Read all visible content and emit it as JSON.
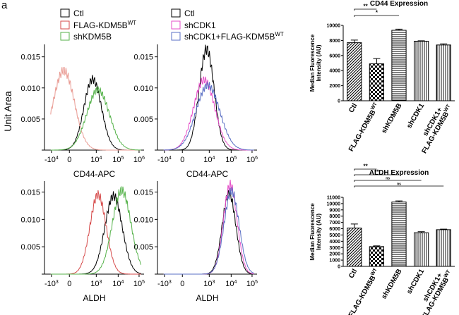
{
  "panel_label": "a",
  "legends": [
    {
      "items": [
        {
          "label": "Ctl",
          "sup": "",
          "color": "#000000"
        },
        {
          "label": "FLAG-KDM5B",
          "sup": "WT",
          "color": "#d64a4a"
        },
        {
          "label": "shKDM5B",
          "sup": "",
          "color": "#55b24a"
        }
      ]
    },
    {
      "items": [
        {
          "label": "Ctl",
          "sup": "",
          "color": "#000000"
        },
        {
          "label": "shCDK1",
          "sup": "",
          "color": "#e64fc8"
        },
        {
          "label": "shCDK1+FLAG-KDM5B",
          "sup": "WT",
          "color": "#5a6fc4"
        }
      ]
    }
  ],
  "shared_ylabel": "Unit Area",
  "histograms": [
    {
      "xlabel": "CD44-APC",
      "yticks": [
        "0.015",
        "0.010",
        "0.005",
        "0"
      ],
      "ymax": 0.017,
      "xticks": [
        {
          "base": "-10",
          "exp": "4"
        },
        {
          "base": "0",
          "exp": ""
        },
        {
          "base": "10",
          "exp": "4"
        },
        {
          "base": "10",
          "exp": "5"
        },
        {
          "base": "10",
          "exp": "6"
        }
      ],
      "series": [
        {
          "name": "Ctl",
          "color": "#000000",
          "center": 1.55,
          "width": 0.28,
          "peak": 0.0114
        },
        {
          "name": "FLAG-KDM5B",
          "color": "#e99a92",
          "center": 0.62,
          "width": 0.34,
          "peak": 0.0128
        },
        {
          "name": "shKDM5B",
          "color": "#55b24a",
          "center": 1.72,
          "width": 0.36,
          "peak": 0.0097
        }
      ]
    },
    {
      "xlabel": "CD44-APC",
      "yticks": [
        "0.015",
        "0.010",
        "0.005",
        "0"
      ],
      "ymax": 0.017,
      "xticks": [
        {
          "base": "-10",
          "exp": "4"
        },
        {
          "base": "0",
          "exp": ""
        },
        {
          "base": "10",
          "exp": "4"
        },
        {
          "base": "10",
          "exp": "5"
        },
        {
          "base": "10",
          "exp": "6"
        }
      ],
      "series": [
        {
          "name": "Ctl",
          "color": "#000000",
          "center": 1.58,
          "width": 0.24,
          "peak": 0.0162
        },
        {
          "name": "shCDK1",
          "color": "#e64fc8",
          "center": 1.5,
          "width": 0.34,
          "peak": 0.0113
        },
        {
          "name": "shCDK1+FLAG-KDM5B",
          "color": "#5a6fc4",
          "center": 1.62,
          "width": 0.38,
          "peak": 0.0104
        }
      ]
    },
    {
      "xlabel": "ALDH",
      "yticks": [
        "0.015",
        "0.010",
        "0.005",
        "0"
      ],
      "ymax": 0.017,
      "xticks": [
        {
          "base": "-10",
          "exp": "3"
        },
        {
          "base": "0",
          "exp": ""
        },
        {
          "base": "10",
          "exp": "3"
        },
        {
          "base": "10",
          "exp": "4"
        },
        {
          "base": "10",
          "exp": "5"
        }
      ],
      "series": [
        {
          "name": "Ctl",
          "color": "#000000",
          "center": 2.22,
          "width": 0.28,
          "peak": 0.0143
        },
        {
          "name": "FLAG-KDM5B",
          "color": "#d64a4a",
          "center": 1.72,
          "width": 0.26,
          "peak": 0.0145
        },
        {
          "name": "shKDM5B",
          "color": "#55b24a",
          "center": 2.48,
          "width": 0.3,
          "peak": 0.0153
        }
      ]
    },
    {
      "xlabel": "ALDH",
      "yticks": [
        "0.015",
        "0.010",
        "0.005",
        "0"
      ],
      "ymax": 0.017,
      "xticks": [
        {
          "base": "-10",
          "exp": "3"
        },
        {
          "base": "0",
          "exp": ""
        },
        {
          "base": "10",
          "exp": "3"
        },
        {
          "base": "10",
          "exp": "4"
        },
        {
          "base": "10",
          "exp": "5"
        }
      ],
      "series": [
        {
          "name": "Ctl",
          "color": "#000000",
          "center": 2.3,
          "width": 0.22,
          "peak": 0.0148
        },
        {
          "name": "shCDK1",
          "color": "#e64fc8",
          "center": 2.34,
          "width": 0.22,
          "peak": 0.0163
        },
        {
          "name": "shCDK1+FLAG-KDM5B",
          "color": "#5a6fc4",
          "center": 2.38,
          "width": 0.24,
          "peak": 0.0152
        }
      ]
    }
  ],
  "chart_data": [
    {
      "type": "bar",
      "title": "CD44 Expression",
      "ylabel": "Median Fluorescence Intensity (AU)",
      "ylim": [
        0,
        10000
      ],
      "yticks": [
        "0",
        "2000",
        "4000",
        "6000",
        "8000",
        "10000"
      ],
      "categories": [
        {
          "label": "Ctl",
          "sup": ""
        },
        {
          "label": "FLAG-KDM5B",
          "sup": "WT"
        },
        {
          "label": "shKDM5B",
          "sup": ""
        },
        {
          "label": "shCDK1",
          "sup": ""
        },
        {
          "label": "shCDK1+",
          "label2": "FLAG-KDM5B",
          "sup": "WT"
        }
      ],
      "values": [
        7700,
        4900,
        9350,
        7900,
        7400
      ],
      "errors": [
        350,
        700,
        150,
        60,
        150
      ],
      "patterns": [
        "diag",
        "check",
        "hstripe",
        "vstripe",
        "vstripe"
      ],
      "significance": [
        {
          "from": 0,
          "to": 1,
          "label": "**"
        },
        {
          "from": 0,
          "to": 2,
          "label": "*"
        }
      ]
    },
    {
      "type": "bar",
      "title": "ALDH Expression",
      "ylabel": "Median Fluorescence Intensity (AU)",
      "ylim": [
        0,
        11000
      ],
      "yticks": [
        "0",
        "1000",
        "2000",
        "3000",
        "4000",
        "5000",
        "6000",
        "7000",
        "8000",
        "9000",
        "10000",
        "11000"
      ],
      "categories": [
        {
          "label": "Ctl",
          "sup": ""
        },
        {
          "label": "FLAG-KDM5B",
          "sup": "WT"
        },
        {
          "label": "shKDM5B",
          "sup": ""
        },
        {
          "label": "shCDK1",
          "sup": ""
        },
        {
          "label": "shCDK1+",
          "label2": "FLAG-KDM5B",
          "sup": "WT"
        }
      ],
      "values": [
        6100,
        3150,
        10250,
        5350,
        5850
      ],
      "errors": [
        650,
        120,
        180,
        180,
        80
      ],
      "patterns": [
        "diag",
        "check",
        "hstripe",
        "vstripe",
        "vstripe"
      ],
      "significance": [
        {
          "from": 0,
          "to": 1,
          "label": "**"
        },
        {
          "from": 0,
          "to": 2,
          "label": "**"
        },
        {
          "from": 0,
          "to": 3,
          "label": "ns"
        },
        {
          "from": 0,
          "to": 4,
          "label": "ns"
        }
      ]
    }
  ]
}
